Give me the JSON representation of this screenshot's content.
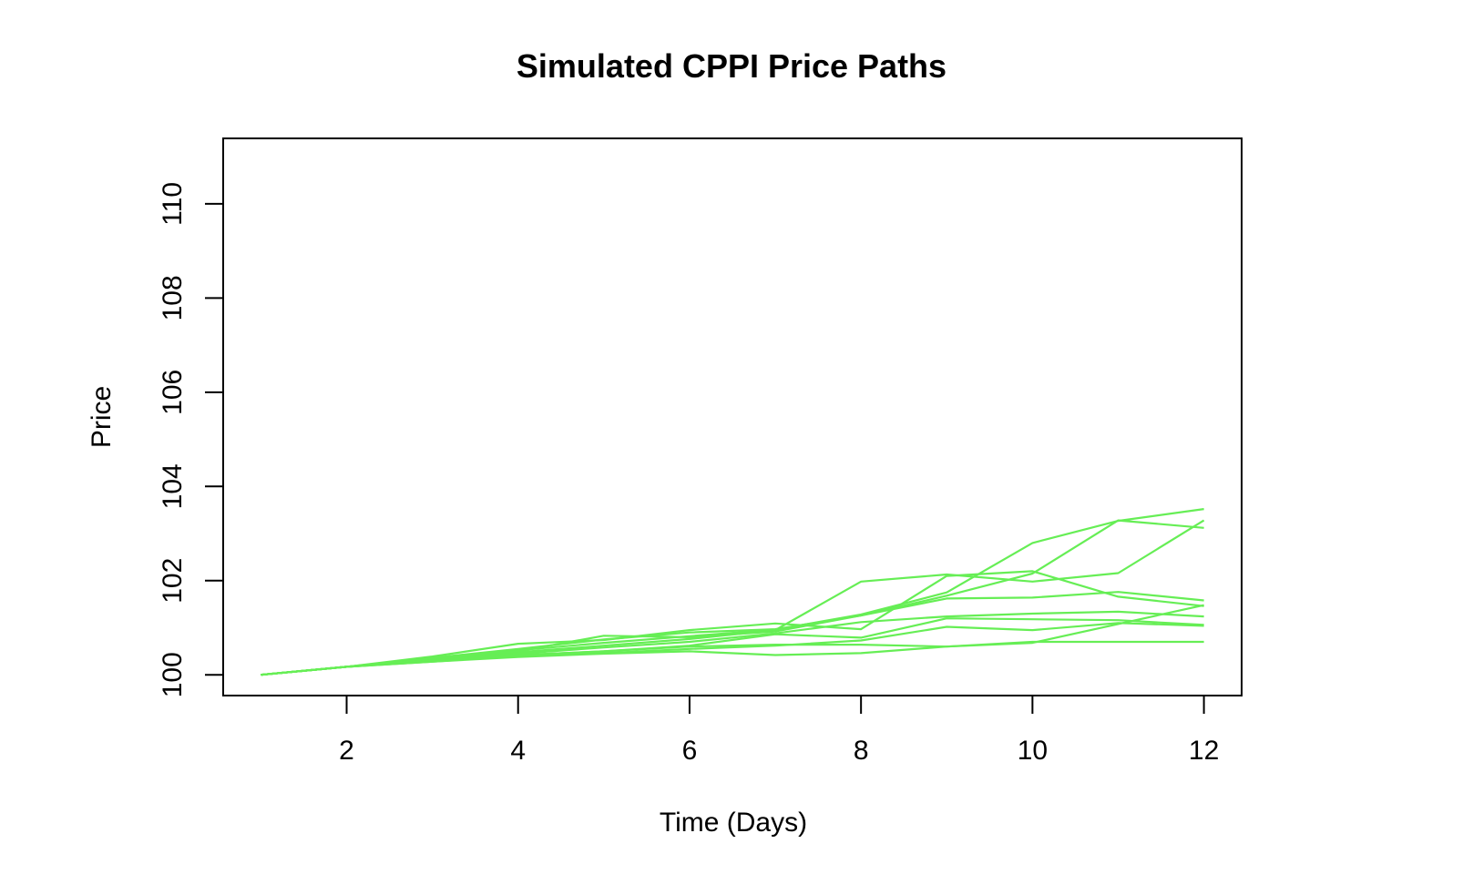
{
  "chart_data": {
    "type": "line",
    "title": "Simulated CPPI Price Paths",
    "xlabel": "Time (Days)",
    "ylabel": "Price",
    "x": [
      1,
      2,
      3,
      4,
      5,
      6,
      7,
      8,
      9,
      10,
      11,
      12
    ],
    "xlim": [
      0.56,
      12.44
    ],
    "ylim": [
      99.56,
      111.39
    ],
    "xticks": [
      2,
      4,
      6,
      8,
      10,
      12
    ],
    "yticks": [
      100,
      102,
      104,
      106,
      108,
      110
    ],
    "grid": false,
    "legend": "none",
    "line_color": "#66ee55",
    "series": [
      {
        "values": [
          100,
          100.17,
          100.36,
          100.55,
          100.75,
          100.9,
          100.97,
          101.26,
          101.68,
          102.15,
          103.28,
          103.12
        ]
      },
      {
        "values": [
          100,
          100.17,
          100.35,
          100.52,
          100.68,
          100.82,
          100.96,
          101.28,
          101.75,
          102.8,
          103.27,
          103.52
        ]
      },
      {
        "values": [
          100,
          100.17,
          100.33,
          100.48,
          100.62,
          100.76,
          100.95,
          101.98,
          102.13,
          101.98,
          102.16,
          103.28
        ]
      },
      {
        "values": [
          100,
          100.17,
          100.39,
          100.66,
          100.74,
          100.95,
          101.09,
          100.97,
          102.1,
          102.2,
          101.66,
          101.46
        ]
      },
      {
        "values": [
          100,
          100.17,
          100.35,
          100.5,
          100.83,
          100.8,
          100.92,
          101.26,
          101.62,
          101.64,
          101.76,
          101.58
        ]
      },
      {
        "values": [
          100,
          100.17,
          100.3,
          100.45,
          100.58,
          100.7,
          100.88,
          101.12,
          101.24,
          101.3,
          101.34,
          101.24
        ]
      },
      {
        "values": [
          100,
          100.17,
          100.3,
          100.42,
          100.5,
          100.62,
          100.86,
          100.79,
          101.2,
          101.18,
          101.16,
          101.06
        ]
      },
      {
        "values": [
          100,
          100.17,
          100.28,
          100.4,
          100.46,
          100.55,
          100.62,
          100.73,
          101.02,
          100.95,
          101.1,
          101.04
        ]
      },
      {
        "values": [
          100,
          100.17,
          100.28,
          100.38,
          100.45,
          100.5,
          100.42,
          100.46,
          100.6,
          100.68,
          101.08,
          101.48
        ]
      },
      {
        "values": [
          100,
          100.17,
          100.3,
          100.42,
          100.5,
          100.6,
          100.64,
          100.64,
          100.6,
          100.7,
          100.7,
          100.7
        ]
      }
    ]
  }
}
